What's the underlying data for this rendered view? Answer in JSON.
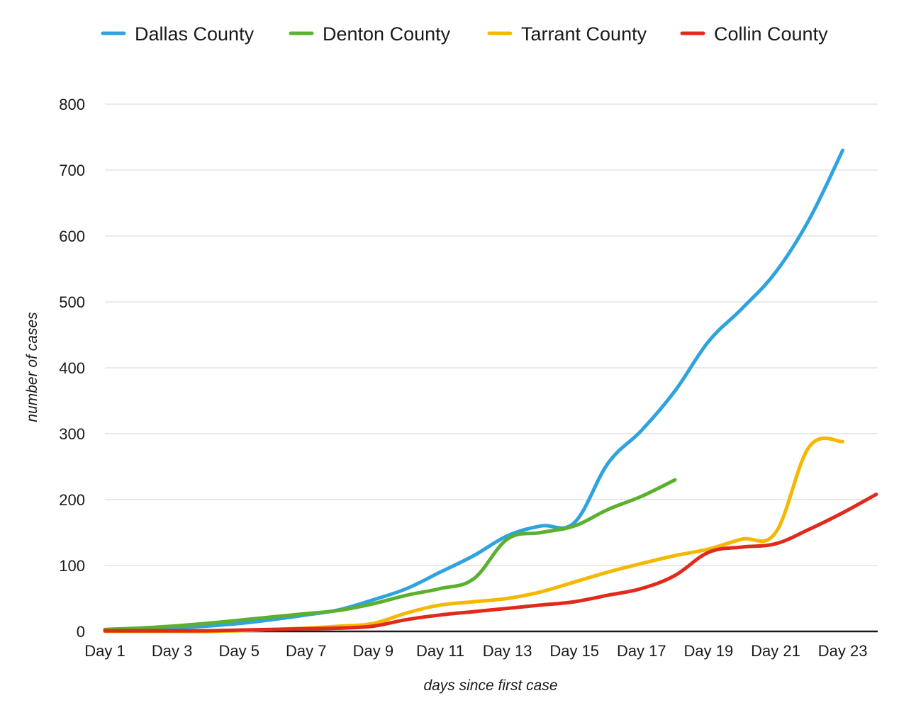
{
  "chart_data": {
    "type": "line",
    "title": "",
    "xlabel": "days since first case",
    "ylabel": "number of cases",
    "ylim": [
      0,
      800
    ],
    "yticks": [
      0,
      100,
      200,
      300,
      400,
      500,
      600,
      700,
      800
    ],
    "grid": true,
    "legend_position": "top",
    "x": [
      "Day 1",
      "Day 2",
      "Day 3",
      "Day 4",
      "Day 5",
      "Day 6",
      "Day 7",
      "Day 8",
      "Day 9",
      "Day 10",
      "Day 11",
      "Day 12",
      "Day 13",
      "Day 14",
      "Day 15",
      "Day 16",
      "Day 17",
      "Day 18",
      "Day 19",
      "Day 20",
      "Day 21",
      "Day 22",
      "Day 23",
      "Day 24"
    ],
    "xtick_labels": [
      "Day 1",
      "Day 3",
      "Day 5",
      "Day 7",
      "Day 9",
      "Day 11",
      "Day 13",
      "Day 15",
      "Day 17",
      "Day 19",
      "Day 21",
      "Day 23"
    ],
    "series": [
      {
        "name": "Dallas County",
        "color": "#2fa3de",
        "values": [
          2,
          3,
          5,
          8,
          12,
          18,
          25,
          33,
          48,
          65,
          90,
          115,
          145,
          160,
          165,
          255,
          305,
          365,
          440,
          490,
          545,
          625,
          730,
          null
        ]
      },
      {
        "name": "Denton County",
        "color": "#5bb02e",
        "values": [
          3,
          5,
          8,
          12,
          17,
          22,
          27,
          32,
          42,
          55,
          65,
          80,
          140,
          150,
          160,
          185,
          205,
          230,
          null,
          null,
          null,
          null,
          null,
          null
        ]
      },
      {
        "name": "Tarrant County",
        "color": "#f5b800",
        "values": [
          0,
          0,
          0,
          0,
          1,
          3,
          5,
          8,
          12,
          28,
          40,
          45,
          50,
          60,
          75,
          90,
          103,
          115,
          125,
          140,
          150,
          280,
          288,
          null
        ]
      },
      {
        "name": "Collin County",
        "color": "#e02a1c",
        "values": [
          1,
          1,
          1,
          1,
          2,
          3,
          4,
          5,
          8,
          18,
          25,
          30,
          35,
          40,
          45,
          55,
          65,
          85,
          120,
          128,
          133,
          155,
          180,
          208
        ]
      }
    ]
  }
}
